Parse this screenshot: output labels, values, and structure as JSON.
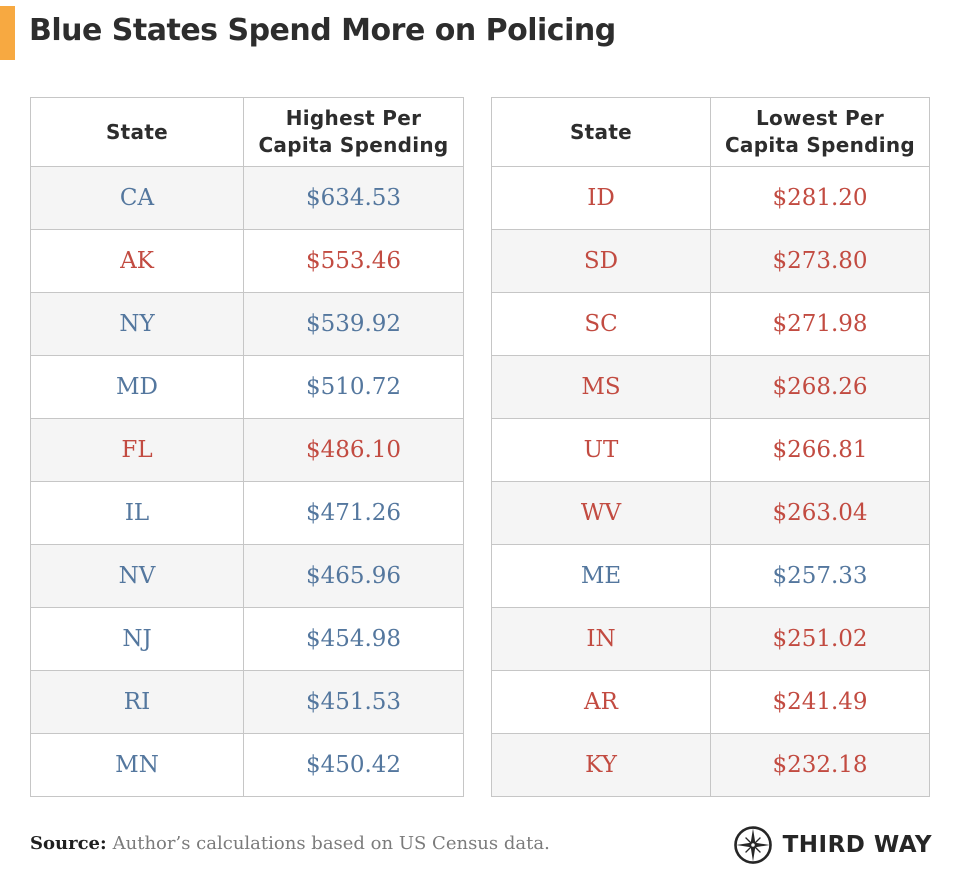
{
  "title": "Blue States Spend More on Policing",
  "colors": {
    "accent": "#F7A941",
    "blue_state": "#54779E",
    "red_state": "#C24B41",
    "shaded_row": "#f5f5f5",
    "border": "#c6c6c6"
  },
  "chart_data": {
    "type": "table",
    "title": "Blue States Spend More on Policing",
    "tables": [
      {
        "name": "highest-per-capita-spending",
        "columns": [
          {
            "lines": [
              "State"
            ]
          },
          {
            "lines": [
              "Highest Per",
              "Capita Spending"
            ]
          }
        ],
        "first_row_shaded": true,
        "rows": [
          {
            "state": "CA",
            "display": "$634.53",
            "value_usd": 634.53,
            "party": "blue"
          },
          {
            "state": "AK",
            "display": "$553.46",
            "value_usd": 553.46,
            "party": "red"
          },
          {
            "state": "NY",
            "display": "$539.92",
            "value_usd": 539.92,
            "party": "blue"
          },
          {
            "state": "MD",
            "display": "$510.72",
            "value_usd": 510.72,
            "party": "blue"
          },
          {
            "state": "FL",
            "display": "$486.10",
            "value_usd": 486.1,
            "party": "red"
          },
          {
            "state": "IL",
            "display": "$471.26",
            "value_usd": 471.26,
            "party": "blue"
          },
          {
            "state": "NV",
            "display": "$465.96",
            "value_usd": 465.96,
            "party": "blue"
          },
          {
            "state": "NJ",
            "display": "$454.98",
            "value_usd": 454.98,
            "party": "blue"
          },
          {
            "state": "RI",
            "display": "$451.53",
            "value_usd": 451.53,
            "party": "blue"
          },
          {
            "state": "MN",
            "display": "$450.42",
            "value_usd": 450.42,
            "party": "blue"
          }
        ]
      },
      {
        "name": "lowest-per-capita-spending",
        "columns": [
          {
            "lines": [
              "State"
            ]
          },
          {
            "lines": [
              "Lowest Per",
              "Capita Spending"
            ]
          }
        ],
        "first_row_shaded": false,
        "rows": [
          {
            "state": "ID",
            "display": "$281.20",
            "value_usd": 281.2,
            "party": "red"
          },
          {
            "state": "SD",
            "display": "$273.80",
            "value_usd": 273.8,
            "party": "red"
          },
          {
            "state": "SC",
            "display": "$271.98",
            "value_usd": 271.98,
            "party": "red"
          },
          {
            "state": "MS",
            "display": "$268.26",
            "value_usd": 268.26,
            "party": "red"
          },
          {
            "state": "UT",
            "display": "$266.81",
            "value_usd": 266.81,
            "party": "red"
          },
          {
            "state": "WV",
            "display": "$263.04",
            "value_usd": 263.04,
            "party": "red"
          },
          {
            "state": "ME",
            "display": "$257.33",
            "value_usd": 257.33,
            "party": "blue"
          },
          {
            "state": "IN",
            "display": "$251.02",
            "value_usd": 251.02,
            "party": "red"
          },
          {
            "state": "AR",
            "display": "$241.49",
            "value_usd": 241.49,
            "party": "red"
          },
          {
            "state": "KY",
            "display": "$232.18",
            "value_usd": 232.18,
            "party": "red"
          }
        ]
      }
    ]
  },
  "footer": {
    "source_label": "Source:",
    "source_text": "Author’s calculations based on US Census data.",
    "logo_text": "THIRD WAY",
    "logo_icon": "compass-icon"
  }
}
